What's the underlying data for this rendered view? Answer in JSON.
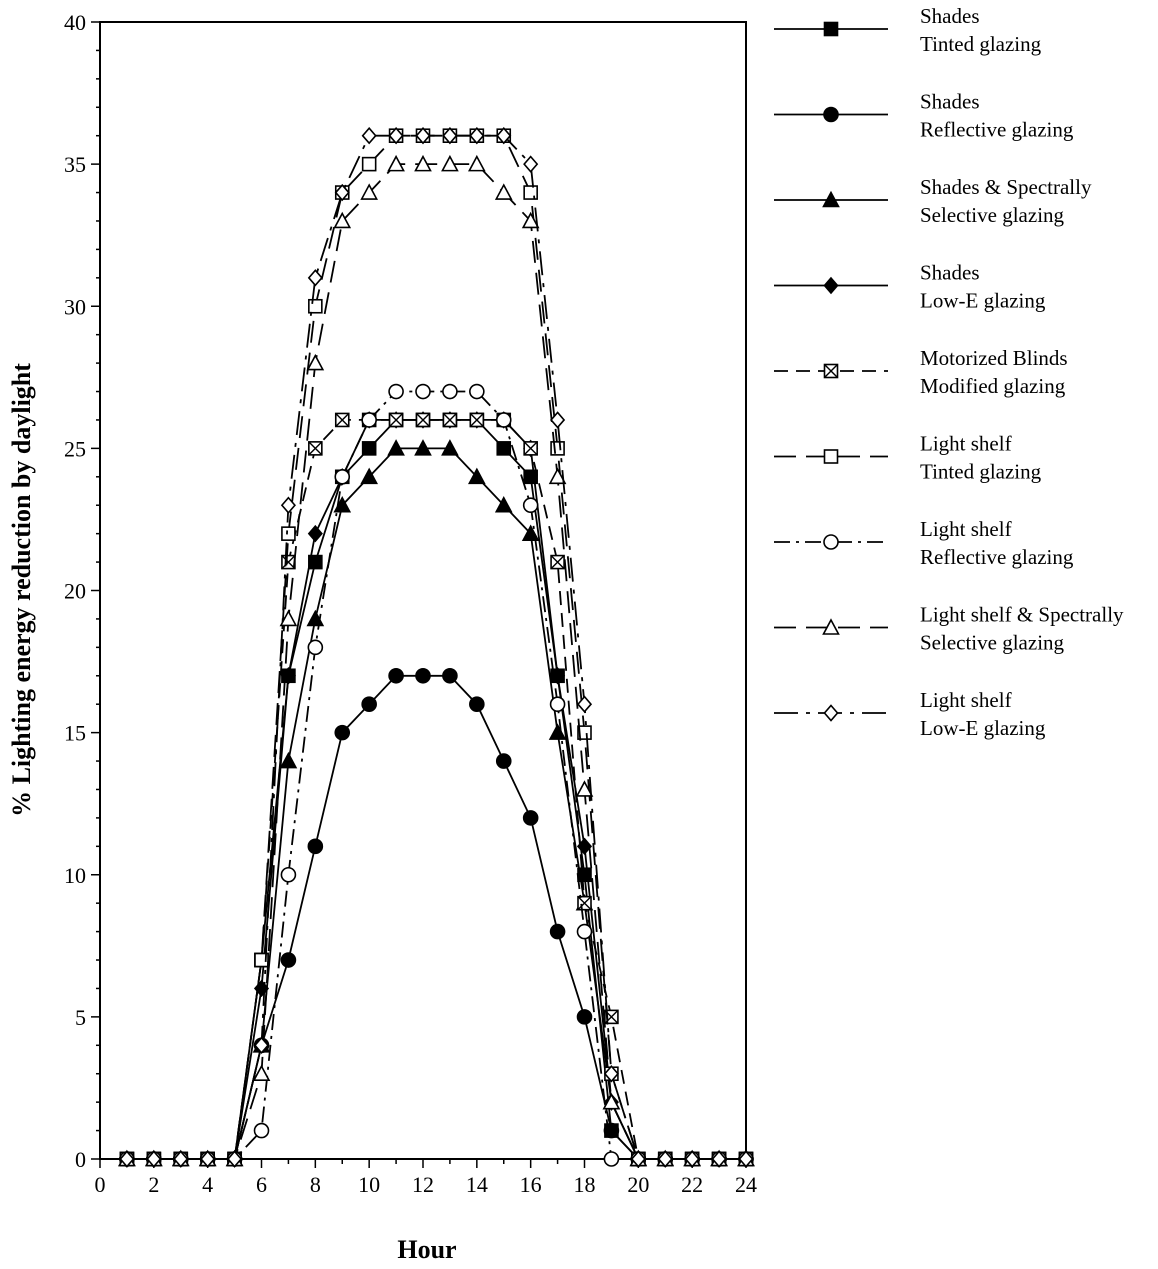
{
  "chart_data": {
    "type": "line",
    "title": "",
    "xlabel": "Hour",
    "ylabel": "% Lighting energy reduction by daylight",
    "xlim": [
      0,
      24
    ],
    "ylim": [
      0,
      40
    ],
    "xticks": [
      "0",
      "2",
      "4",
      "6",
      "8",
      "10",
      "12",
      "14",
      "16",
      "18",
      "20",
      "22",
      "24"
    ],
    "yticks": [
      "0",
      "5",
      "10",
      "15",
      "20",
      "25",
      "30",
      "35",
      "40"
    ],
    "grid": false,
    "legend_position": "right",
    "series": [
      {
        "name": "Shades Tinted glazing",
        "legend_lines": [
          "Shades",
          "Tinted glazing"
        ],
        "marker": "square-filled",
        "line_style": "solid",
        "x": [
          1,
          2,
          3,
          4,
          5,
          6,
          7,
          8,
          9,
          10,
          11,
          12,
          13,
          14,
          15,
          16,
          17,
          18,
          19,
          20,
          21,
          22,
          23,
          24
        ],
        "y": [
          0,
          0,
          0,
          0,
          0,
          7,
          17,
          21,
          24,
          25,
          26,
          26,
          26,
          26,
          25,
          24,
          17,
          10,
          1,
          0,
          0,
          0,
          0,
          0
        ]
      },
      {
        "name": "Shades Reflective glazing",
        "legend_lines": [
          "Shades",
          "Reflective glazing"
        ],
        "marker": "circle-filled",
        "line_style": "solid",
        "x": [
          1,
          2,
          3,
          4,
          5,
          6,
          7,
          8,
          9,
          10,
          11,
          12,
          13,
          14,
          15,
          16,
          17,
          18,
          19,
          20,
          21,
          22,
          23,
          24
        ],
        "y": [
          0,
          0,
          0,
          0,
          0,
          4,
          7,
          11,
          15,
          16,
          17,
          17,
          17,
          16,
          14,
          12,
          8,
          5,
          1,
          0,
          0,
          0,
          0,
          0
        ]
      },
      {
        "name": "Shades & Spectrally Selective glazing",
        "legend_lines": [
          "Shades & Spectrally",
          "Selective glazing"
        ],
        "marker": "triangle-filled",
        "line_style": "solid",
        "x": [
          1,
          2,
          3,
          4,
          5,
          6,
          7,
          8,
          9,
          10,
          11,
          12,
          13,
          14,
          15,
          16,
          17,
          18,
          19,
          20,
          21,
          22,
          23,
          24
        ],
        "y": [
          0,
          0,
          0,
          0,
          0,
          4,
          14,
          19,
          23,
          24,
          25,
          25,
          25,
          24,
          23,
          22,
          15,
          9,
          2,
          0,
          0,
          0,
          0,
          0
        ]
      },
      {
        "name": "Shades Low-E glazing",
        "legend_lines": [
          "Shades",
          "Low-E glazing"
        ],
        "marker": "diamond-filled",
        "line_style": "solid",
        "x": [
          1,
          2,
          3,
          4,
          5,
          6,
          7,
          8,
          9,
          10,
          11,
          12,
          13,
          14,
          15,
          16,
          17,
          18,
          19,
          20,
          21,
          22,
          23,
          24
        ],
        "y": [
          0,
          0,
          0,
          0,
          0,
          6,
          17,
          22,
          24,
          26,
          26,
          26,
          26,
          26,
          26,
          25,
          17,
          11,
          2,
          0,
          0,
          0,
          0,
          0
        ]
      },
      {
        "name": "Motorized Blinds Modified glazing",
        "legend_lines": [
          "Motorized Blinds",
          "Modified glazing"
        ],
        "marker": "square-crossed",
        "line_style": "dashed",
        "x": [
          1,
          2,
          3,
          4,
          5,
          6,
          7,
          8,
          9,
          10,
          11,
          12,
          13,
          14,
          15,
          16,
          17,
          18,
          19,
          20,
          21,
          22,
          23,
          24
        ],
        "y": [
          0,
          0,
          0,
          0,
          0,
          7,
          21,
          25,
          26,
          26,
          26,
          26,
          26,
          26,
          26,
          25,
          21,
          9,
          5,
          0,
          0,
          0,
          0,
          0
        ]
      },
      {
        "name": "Light shelf Tinted glazing",
        "legend_lines": [
          "Light shelf",
          "Tinted glazing"
        ],
        "marker": "square-open",
        "line_style": "long-dash",
        "x": [
          1,
          2,
          3,
          4,
          5,
          6,
          7,
          8,
          9,
          10,
          11,
          12,
          13,
          14,
          15,
          16,
          17,
          18,
          19,
          20,
          21,
          22,
          23,
          24
        ],
        "y": [
          0,
          0,
          0,
          0,
          0,
          7,
          22,
          30,
          34,
          35,
          36,
          36,
          36,
          36,
          36,
          34,
          25,
          15,
          3,
          0,
          0,
          0,
          0,
          0
        ]
      },
      {
        "name": "Light shelf Reflective glazing",
        "legend_lines": [
          "Light shelf",
          "Reflective glazing"
        ],
        "marker": "circle-open",
        "line_style": "dash-dot",
        "x": [
          1,
          2,
          3,
          4,
          5,
          6,
          7,
          8,
          9,
          10,
          11,
          12,
          13,
          14,
          15,
          16,
          17,
          18,
          19,
          20,
          21,
          22,
          23,
          24
        ],
        "y": [
          0,
          0,
          0,
          0,
          0,
          1,
          10,
          18,
          24,
          26,
          27,
          27,
          27,
          27,
          26,
          23,
          16,
          8,
          0,
          0,
          0,
          0,
          0,
          0
        ]
      },
      {
        "name": "Light shelf & Spectrally Selective glazing",
        "legend_lines": [
          "Light shelf & Spectrally",
          "Selective glazing"
        ],
        "marker": "triangle-open",
        "line_style": "long-dash",
        "x": [
          1,
          2,
          3,
          4,
          5,
          6,
          7,
          8,
          9,
          10,
          11,
          12,
          13,
          14,
          15,
          16,
          17,
          18,
          19,
          20,
          21,
          22,
          23,
          24
        ],
        "y": [
          0,
          0,
          0,
          0,
          0,
          3,
          19,
          28,
          33,
          34,
          35,
          35,
          35,
          35,
          34,
          33,
          24,
          13,
          2,
          0,
          0,
          0,
          0,
          0
        ]
      },
      {
        "name": "Light shelf Low-E glazing",
        "legend_lines": [
          "Light shelf",
          "Low-E glazing"
        ],
        "marker": "diamond-open",
        "line_style": "long-dash-dot",
        "x": [
          1,
          2,
          3,
          4,
          5,
          6,
          7,
          8,
          9,
          10,
          11,
          12,
          13,
          14,
          15,
          16,
          17,
          18,
          19,
          20,
          21,
          22,
          23,
          24
        ],
        "y": [
          0,
          0,
          0,
          0,
          0,
          4,
          23,
          31,
          34,
          36,
          36,
          36,
          36,
          36,
          36,
          35,
          26,
          16,
          3,
          0,
          0,
          0,
          0,
          0
        ]
      }
    ]
  }
}
